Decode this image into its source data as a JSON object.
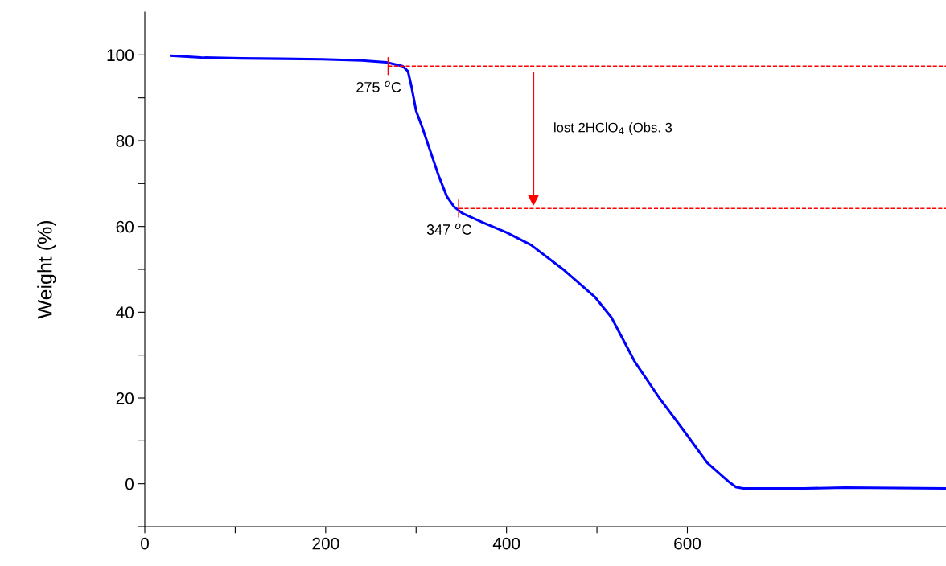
{
  "chart_data": {
    "type": "line",
    "ylabel": "Weight (%)",
    "xlim": [
      0,
      886
    ],
    "xticks": [
      0,
      {
        "value": 100,
        "label": null
      },
      200,
      {
        "value": 300,
        "label": null
      },
      400,
      {
        "value": 500,
        "label": null
      },
      600
    ],
    "ylim": [
      -10,
      110
    ],
    "yticks": [
      {
        "value": -10,
        "label": null
      },
      0,
      {
        "value": 10,
        "label": null
      },
      20,
      {
        "value": 30,
        "label": null
      },
      40,
      {
        "value": 50,
        "label": null
      },
      60,
      {
        "value": 70,
        "label": null
      },
      80,
      {
        "value": 90,
        "label": null
      },
      100
    ],
    "grid": false,
    "legend": false,
    "series": [
      {
        "color": "#0000ff",
        "line_style": "solid",
        "x": [
          29,
          62,
          107,
          151,
          196,
          240,
          267,
          285,
          291,
          295,
          300,
          307,
          316,
          325,
          334,
          342,
          351,
          373,
          400,
          427,
          462,
          498,
          516,
          542,
          569,
          596,
          622,
          645,
          654,
          662,
          729,
          774,
          886
        ],
        "values": [
          99.8,
          99.4,
          99.2,
          99.1,
          99.0,
          98.7,
          98.3,
          97.4,
          96.2,
          92.5,
          87,
          83,
          77.4,
          71.8,
          67,
          64.6,
          63.1,
          61,
          58.6,
          55.7,
          50.1,
          43.5,
          38.8,
          28.4,
          20,
          12.4,
          4.9,
          0.6,
          -0.8,
          -1.1,
          -1.1,
          -0.9,
          -1.1
        ]
      },
      {
        "color": "#ff0000",
        "line_style": "dashed",
        "x": [
          269,
          886
        ],
        "values": [
          97.4,
          97.4
        ]
      },
      {
        "color": "#ff0000",
        "line_style": "dashed",
        "x": [
          347,
          886
        ],
        "values": [
          64.2,
          64.2
        ]
      }
    ],
    "annotations": [
      {
        "text": "275 $^{o}$C",
        "x": 269,
        "y": 97.4
      },
      {
        "text": "347 $^{o}$C",
        "x": 347,
        "y": 64.2
      },
      "lost 2HClO$_{4}$ (Obs. 3"
    ]
  }
}
